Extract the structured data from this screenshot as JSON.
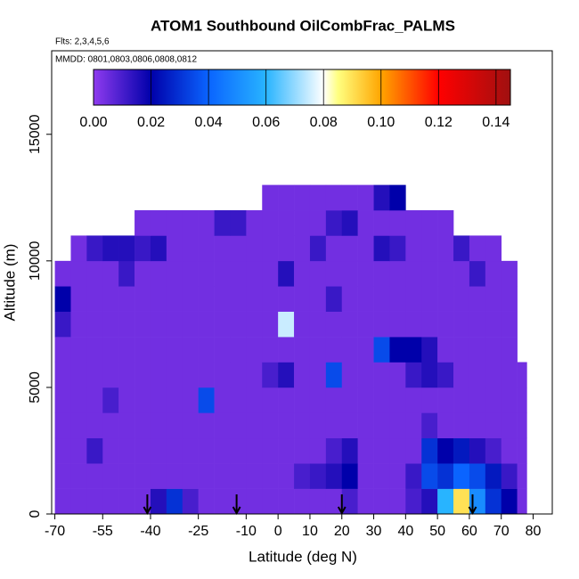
{
  "chart_data": {
    "type": "heatmap",
    "title": "ATOM1 Southbound OilCombFrac_PALMS",
    "subtitle": "Flts: 2,3,4,5,6",
    "annotation": "MMDD: 0801,0803,0806,0808,0812",
    "xlabel": "Latitude (deg N)",
    "ylabel": "Altitude (m)",
    "xlim": [
      -71,
      86
    ],
    "ylim": [
      0,
      18300
    ],
    "xticks": [
      -70,
      -55,
      -40,
      -25,
      -10,
      0,
      10,
      20,
      30,
      40,
      50,
      60,
      70,
      80
    ],
    "yticks": [
      0,
      5000,
      10000,
      15000
    ],
    "x_edges": [
      -70,
      -65,
      -60,
      -55,
      -50,
      -45,
      -40,
      -35,
      -30,
      -25,
      -20,
      -15,
      -10,
      -5,
      0,
      5,
      10,
      15,
      20,
      25,
      30,
      35,
      40,
      45,
      50,
      55,
      60,
      65,
      70,
      75,
      78
    ],
    "y_edges": [
      0,
      1000,
      2000,
      3000,
      4000,
      5000,
      6000,
      7000,
      8000,
      9000,
      10000,
      11000,
      12000,
      13000
    ],
    "z": [
      [
        0.004,
        0.004,
        0.004,
        0.004,
        0.004,
        0.004,
        0.015,
        0.03,
        0.01,
        0.004,
        0.004,
        0.004,
        0.004,
        0.004,
        0.004,
        0.004,
        0.004,
        0.004,
        0.01,
        0.004,
        0.004,
        0.004,
        0.01,
        0.015,
        0.06,
        0.09,
        0.05,
        0.03,
        0.02,
        0.004
      ],
      [
        0.004,
        0.004,
        0.004,
        0.004,
        0.004,
        0.004,
        0.004,
        0.004,
        0.004,
        0.004,
        0.004,
        0.004,
        0.004,
        0.004,
        0.004,
        0.01,
        0.012,
        0.015,
        0.02,
        0.004,
        0.004,
        0.004,
        0.012,
        0.035,
        0.03,
        0.04,
        0.035,
        0.025,
        0.012,
        0.004
      ],
      [
        0.004,
        0.004,
        0.012,
        0.004,
        0.004,
        0.004,
        0.004,
        0.004,
        0.004,
        0.004,
        0.004,
        0.004,
        0.004,
        0.004,
        0.004,
        0.004,
        0.004,
        0.01,
        0.015,
        0.004,
        0.004,
        0.004,
        0.004,
        0.03,
        0.02,
        0.025,
        0.015,
        0.01,
        0.004,
        0.004
      ],
      [
        0.004,
        0.004,
        0.004,
        0.004,
        0.004,
        0.004,
        0.004,
        0.004,
        0.004,
        0.004,
        0.004,
        0.004,
        0.004,
        0.004,
        0.004,
        0.004,
        0.004,
        0.004,
        0.004,
        0.004,
        0.004,
        0.004,
        0.004,
        0.01,
        0.004,
        0.004,
        0.004,
        0.004,
        0.004,
        0.004
      ],
      [
        0.004,
        0.004,
        0.004,
        0.01,
        0.004,
        0.004,
        0.004,
        0.004,
        0.004,
        0.035,
        0.004,
        0.004,
        0.004,
        0.004,
        0.004,
        0.004,
        0.004,
        0.004,
        0.004,
        0.004,
        0.004,
        0.004,
        0.004,
        0.004,
        0.004,
        0.004,
        0.004,
        0.004,
        0.004,
        0.004
      ],
      [
        0.004,
        0.004,
        0.004,
        0.004,
        0.004,
        0.004,
        0.004,
        0.004,
        0.004,
        0.004,
        0.004,
        0.004,
        0.004,
        0.01,
        0.015,
        0.004,
        0.004,
        0.035,
        0.004,
        0.004,
        0.004,
        0.004,
        0.012,
        0.015,
        0.012,
        0.004,
        0.004,
        0.004,
        0.004,
        0.004
      ],
      [
        0.004,
        0.004,
        0.004,
        0.004,
        0.004,
        0.004,
        0.004,
        0.004,
        0.004,
        0.004,
        0.004,
        0.004,
        0.004,
        0.004,
        0.004,
        0.004,
        0.004,
        0.004,
        0.004,
        0.004,
        0.035,
        0.02,
        0.02,
        0.015,
        0.004,
        0.004,
        0.004,
        0.004,
        0.004,
        null
      ],
      [
        0.012,
        0.004,
        0.004,
        0.004,
        0.004,
        0.004,
        0.004,
        0.004,
        0.004,
        0.004,
        0.004,
        0.004,
        0.004,
        0.004,
        0.075,
        0.004,
        0.004,
        0.004,
        0.004,
        0.004,
        0.004,
        0.004,
        0.004,
        0.004,
        0.004,
        0.004,
        0.004,
        0.004,
        0.004,
        null
      ],
      [
        0.02,
        0.004,
        0.004,
        0.004,
        0.004,
        0.004,
        0.004,
        0.004,
        0.004,
        0.004,
        0.004,
        0.004,
        0.004,
        0.004,
        0.004,
        0.004,
        0.004,
        0.012,
        0.004,
        0.004,
        0.004,
        0.004,
        0.004,
        0.004,
        0.004,
        0.004,
        0.004,
        0.004,
        0.004,
        null
      ],
      [
        0.004,
        0.004,
        0.004,
        0.004,
        0.012,
        0.004,
        0.004,
        0.004,
        0.004,
        0.004,
        0.004,
        0.004,
        0.004,
        0.004,
        0.015,
        0.004,
        0.004,
        0.004,
        0.004,
        0.004,
        0.004,
        0.004,
        0.004,
        0.004,
        0.004,
        0.004,
        0.012,
        0.004,
        0.004,
        null
      ],
      [
        null,
        0.004,
        0.012,
        0.015,
        0.015,
        0.012,
        0.015,
        0.004,
        0.004,
        0.004,
        0.004,
        0.004,
        0.004,
        0.004,
        0.004,
        0.004,
        0.012,
        0.004,
        0.004,
        0.004,
        0.015,
        0.012,
        0.004,
        0.004,
        0.004,
        0.012,
        0.004,
        0.004,
        null,
        null
      ],
      [
        null,
        null,
        null,
        null,
        null,
        0.004,
        0.004,
        0.004,
        0.004,
        0.004,
        0.012,
        0.012,
        0.004,
        0.004,
        0.004,
        0.004,
        0.004,
        0.012,
        0.015,
        0.004,
        0.004,
        0.004,
        0.004,
        0.004,
        0.004,
        null,
        null,
        null,
        null,
        null
      ],
      [
        null,
        null,
        null,
        null,
        null,
        null,
        null,
        null,
        null,
        null,
        null,
        null,
        null,
        0.004,
        0.004,
        0.004,
        0.004,
        0.004,
        0.004,
        0.004,
        0.015,
        0.02,
        null,
        null,
        null,
        null,
        null,
        null,
        null,
        null
      ]
    ],
    "markers_x": [
      -41,
      -13,
      20,
      61
    ],
    "clim": [
      0,
      0.145
    ],
    "colorscale": [
      [
        0,
        "#8f3bef"
      ],
      [
        0.02,
        "#0000aa"
      ],
      [
        0.04,
        "#0a64ff"
      ],
      [
        0.06,
        "#28b4ff"
      ],
      [
        0.08,
        "#ffffff"
      ],
      [
        0.085,
        "#ffff80"
      ],
      [
        0.1,
        "#ffa500"
      ],
      [
        0.12,
        "#ff0000"
      ],
      [
        0.145,
        "#a01010"
      ]
    ],
    "colorbar_ticks": [
      {
        "value": 0,
        "label": "0.00"
      },
      {
        "value": 0.02,
        "label": "0.02"
      },
      {
        "value": 0.04,
        "label": "0.04"
      },
      {
        "value": 0.06,
        "label": "0.06"
      },
      {
        "value": 0.08,
        "label": "0.08"
      },
      {
        "value": 0.1,
        "label": "0.10"
      },
      {
        "value": 0.12,
        "label": "0.12"
      },
      {
        "value": 0.14,
        "label": "0.14"
      }
    ]
  }
}
